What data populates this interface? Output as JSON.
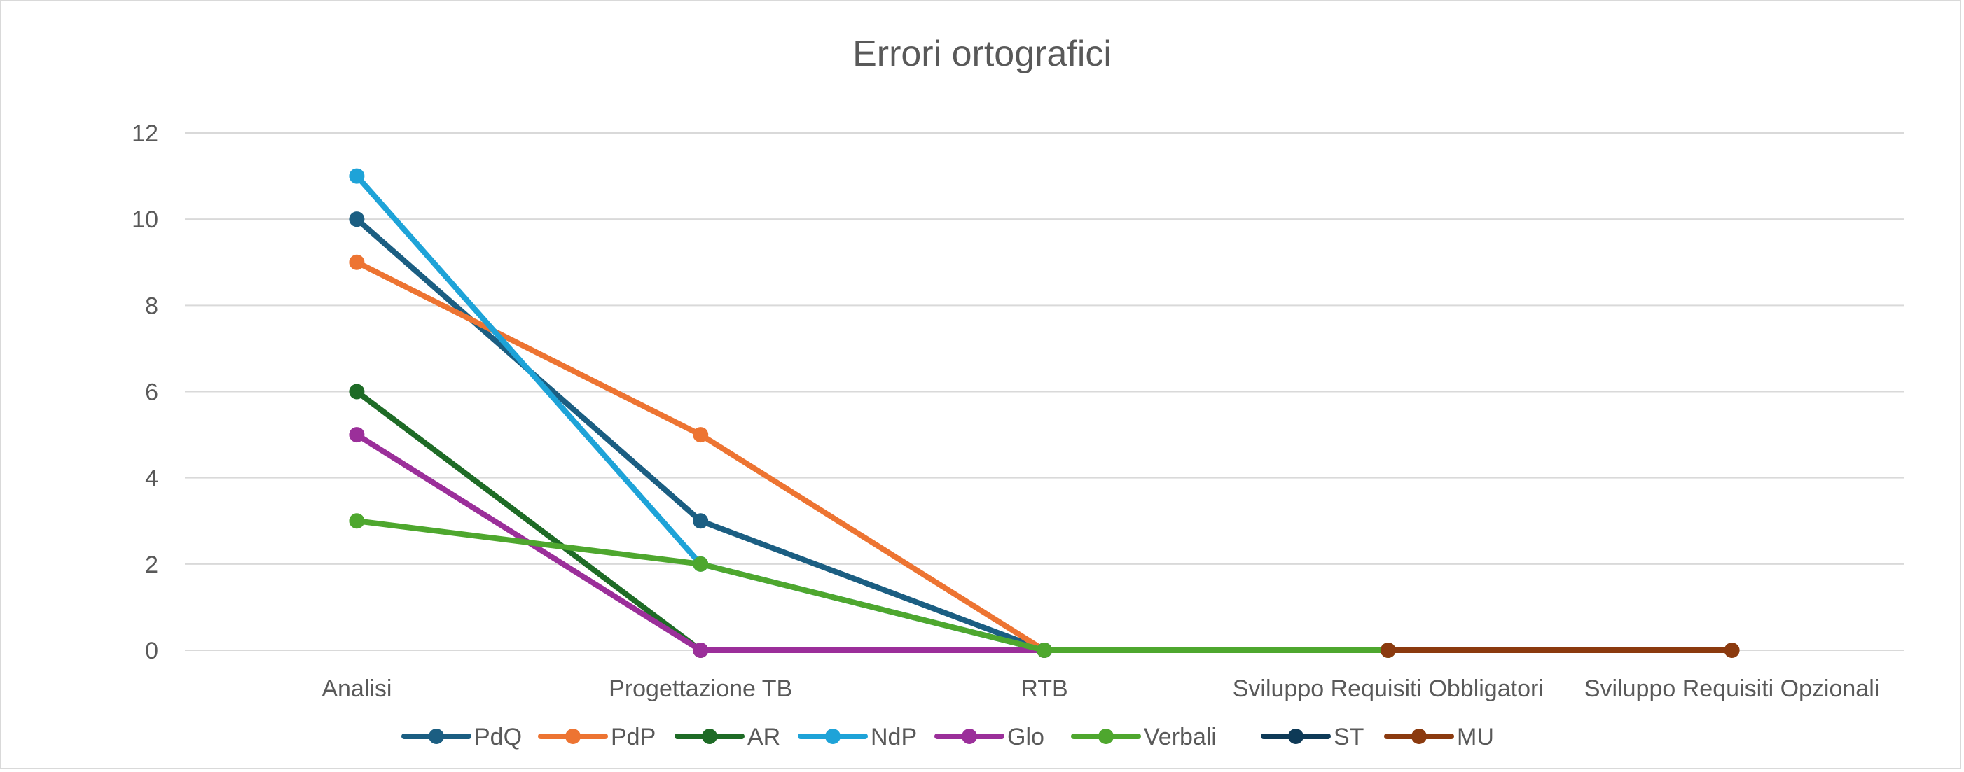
{
  "chart_data": {
    "type": "line",
    "title": "Errori ortografici",
    "xlabel": "",
    "ylabel": "",
    "categories": [
      "Analisi",
      "Progettazione TB",
      "RTB",
      "Sviluppo Requisiti Obbligatori",
      "Sviluppo Requisiti Opzionali"
    ],
    "ylim": [
      0,
      12
    ],
    "yticks": [
      0,
      2,
      4,
      6,
      8,
      10,
      12
    ],
    "grid": true,
    "legend_position": "bottom",
    "series": [
      {
        "name": "PdQ",
        "color": "#1b5e82",
        "values": [
          10,
          3,
          0,
          null,
          null
        ]
      },
      {
        "name": "PdP",
        "color": "#ed7432",
        "values": [
          9,
          5,
          0,
          null,
          null
        ]
      },
      {
        "name": "AR",
        "color": "#1e6b26",
        "values": [
          6,
          0,
          0,
          null,
          null
        ]
      },
      {
        "name": "NdP",
        "color": "#1ea3d8",
        "values": [
          11,
          2,
          0,
          null,
          null
        ]
      },
      {
        "name": "Glo",
        "color": "#9b2f9a",
        "values": [
          5,
          0,
          0,
          null,
          null
        ]
      },
      {
        "name": "Verbali",
        "color": "#4ea72e",
        "values": [
          3,
          2,
          0,
          0,
          null
        ]
      },
      {
        "name": "ST",
        "color": "#0e3a57",
        "values": [
          null,
          null,
          null,
          null,
          null
        ]
      },
      {
        "name": "MU",
        "color": "#8b3a0f",
        "values": [
          null,
          null,
          null,
          0,
          0
        ]
      }
    ]
  }
}
